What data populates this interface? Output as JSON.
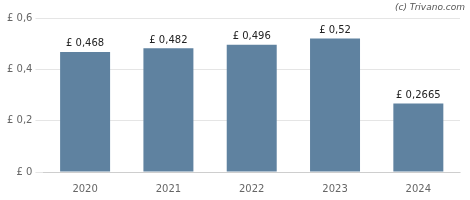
{
  "chart_data": {
    "type": "bar",
    "categories": [
      "2020",
      "2021",
      "2022",
      "2023",
      "2024"
    ],
    "values": [
      0.468,
      0.482,
      0.496,
      0.52,
      0.2665
    ],
    "value_labels": [
      "£ 0,468",
      "£ 0,482",
      "£ 0,496",
      "£ 0,52",
      "£ 0,2665"
    ],
    "data_labels": true,
    "color": "#5f82a0",
    "ylim": [
      0,
      0.6
    ],
    "yticks": [
      {
        "value": 0,
        "label": "£ 0"
      },
      {
        "value": 0.2,
        "label": "£ 0,2"
      },
      {
        "value": 0.4,
        "label": "£ 0,4"
      },
      {
        "value": 0.6,
        "label": "£ 0,6"
      }
    ],
    "grid": true,
    "annotations": [
      "(c) Trivano.com"
    ]
  }
}
